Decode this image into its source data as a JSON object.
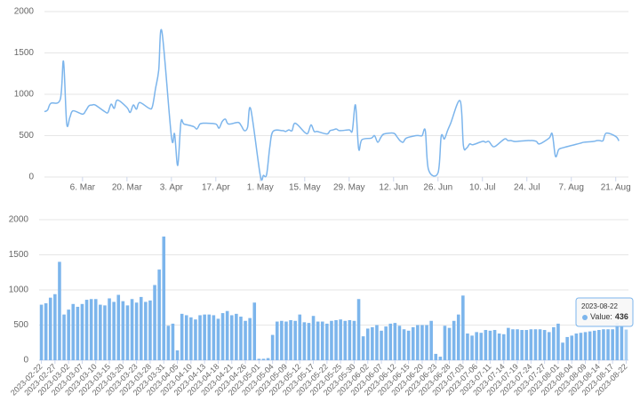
{
  "chart_data": [
    {
      "type": "line",
      "color": "#7cb5ec",
      "grid": true,
      "xlim": [
        "2023-02-22",
        "2023-08-25"
      ],
      "xticks": [
        {
          "value": "2023-03-06",
          "label": "6. Mar"
        },
        {
          "value": "2023-03-20",
          "label": "20. Mar"
        },
        {
          "value": "2023-04-03",
          "label": "3. Apr"
        },
        {
          "value": "2023-04-17",
          "label": "17. Apr"
        },
        {
          "value": "2023-05-01",
          "label": "1. May"
        },
        {
          "value": "2023-05-15",
          "label": "15. May"
        },
        {
          "value": "2023-05-29",
          "label": "29. May"
        },
        {
          "value": "2023-06-12",
          "label": "12. Jun"
        },
        {
          "value": "2023-06-26",
          "label": "26. Jun"
        },
        {
          "value": "2023-07-10",
          "label": "10. Jul"
        },
        {
          "value": "2023-07-24",
          "label": "24. Jul"
        },
        {
          "value": "2023-08-07",
          "label": "7. Aug"
        },
        {
          "value": "2023-08-21",
          "label": "21. Aug"
        }
      ],
      "ylim": [
        0,
        2000
      ],
      "yticks": [
        0,
        500,
        1000,
        1500,
        2000
      ],
      "x": [
        "2023-02-22",
        "2023-02-23",
        "2023-02-24",
        "2023-02-27",
        "2023-02-28",
        "2023-03-01",
        "2023-03-02",
        "2023-03-03",
        "2023-03-06",
        "2023-03-07",
        "2023-03-08",
        "2023-03-09",
        "2023-03-10",
        "2023-03-13",
        "2023-03-14",
        "2023-03-15",
        "2023-03-16",
        "2023-03-17",
        "2023-03-20",
        "2023-03-21",
        "2023-03-22",
        "2023-03-23",
        "2023-03-24",
        "2023-03-27",
        "2023-03-28",
        "2023-03-29",
        "2023-03-30",
        "2023-03-31",
        "2023-04-03",
        "2023-04-04",
        "2023-04-05",
        "2023-04-06",
        "2023-04-07",
        "2023-04-10",
        "2023-04-11",
        "2023-04-12",
        "2023-04-13",
        "2023-04-14",
        "2023-04-17",
        "2023-04-18",
        "2023-04-19",
        "2023-04-20",
        "2023-04-21",
        "2023-04-24",
        "2023-04-25",
        "2023-04-26",
        "2023-04-27",
        "2023-04-28",
        "2023-05-01",
        "2023-05-02",
        "2023-05-03",
        "2023-05-04",
        "2023-05-05",
        "2023-05-08",
        "2023-05-09",
        "2023-05-10",
        "2023-05-11",
        "2023-05-12",
        "2023-05-15",
        "2023-05-16",
        "2023-05-17",
        "2023-05-18",
        "2023-05-19",
        "2023-05-22",
        "2023-05-23",
        "2023-05-24",
        "2023-05-25",
        "2023-05-26",
        "2023-05-29",
        "2023-05-30",
        "2023-05-31",
        "2023-06-01",
        "2023-06-02",
        "2023-06-05",
        "2023-06-06",
        "2023-06-07",
        "2023-06-08",
        "2023-06-09",
        "2023-06-12",
        "2023-06-13",
        "2023-06-14",
        "2023-06-15",
        "2023-06-16",
        "2023-06-19",
        "2023-06-20",
        "2023-06-21",
        "2023-06-22",
        "2023-06-23",
        "2023-06-26",
        "2023-06-27",
        "2023-06-28",
        "2023-06-29",
        "2023-06-30",
        "2023-07-03",
        "2023-07-04",
        "2023-07-05",
        "2023-07-06",
        "2023-07-07",
        "2023-07-10",
        "2023-07-11",
        "2023-07-12",
        "2023-07-13",
        "2023-07-14",
        "2023-07-17",
        "2023-07-18",
        "2023-07-19",
        "2023-07-20",
        "2023-07-21",
        "2023-07-24",
        "2023-07-25",
        "2023-07-26",
        "2023-07-27",
        "2023-07-28",
        "2023-07-31",
        "2023-08-01",
        "2023-08-02",
        "2023-08-03",
        "2023-08-04",
        "2023-08-07",
        "2023-08-08",
        "2023-08-09",
        "2023-08-10",
        "2023-08-11",
        "2023-08-14",
        "2023-08-15",
        "2023-08-16",
        "2023-08-17",
        "2023-08-18",
        "2023-08-21",
        "2023-08-22"
      ],
      "values": [
        790,
        810,
        890,
        940,
        1400,
        650,
        720,
        800,
        760,
        800,
        860,
        870,
        870,
        790,
        780,
        880,
        830,
        930,
        840,
        780,
        870,
        820,
        900,
        830,
        850,
        1070,
        1290,
        1760,
        490,
        520,
        140,
        660,
        640,
        610,
        580,
        640,
        650,
        650,
        640,
        590,
        670,
        700,
        640,
        660,
        620,
        560,
        600,
        820,
        20,
        20,
        30,
        360,
        550,
        560,
        550,
        570,
        560,
        650,
        540,
        530,
        630,
        550,
        550,
        520,
        560,
        570,
        580,
        560,
        570,
        560,
        870,
        340,
        450,
        470,
        500,
        420,
        480,
        520,
        530,
        490,
        440,
        420,
        470,
        500,
        500,
        500,
        560,
        90,
        50,
        490,
        460,
        560,
        650,
        920,
        380,
        350,
        400,
        390,
        430,
        420,
        430,
        380,
        370,
        460,
        440,
        440,
        430,
        430,
        440,
        440,
        440,
        430,
        400,
        470,
        520,
        250,
        330,
        350,
        380,
        390,
        400,
        410,
        420,
        430,
        440,
        440,
        440,
        530,
        490,
        436
      ]
    },
    {
      "type": "bar",
      "color": "#7cb5ec",
      "grid": true,
      "ylim": [
        0,
        2000
      ],
      "yticks": [
        0,
        500,
        1000,
        1500,
        2000
      ],
      "categories": [
        "2023-02-22",
        null,
        null,
        "2023-02-27",
        null,
        null,
        "2023-03-02",
        null,
        null,
        "2023-03-07",
        null,
        null,
        "2023-03-10",
        null,
        null,
        "2023-03-15",
        null,
        null,
        "2023-03-20",
        null,
        null,
        "2023-03-23",
        null,
        null,
        "2023-03-28",
        null,
        null,
        "2023-03-31",
        null,
        null,
        "2023-04-05",
        null,
        null,
        "2023-04-10",
        null,
        null,
        "2023-04-13",
        null,
        null,
        "2023-04-18",
        null,
        null,
        "2023-04-21",
        null,
        null,
        "2023-04-26",
        null,
        null,
        "2023-05-01",
        null,
        null,
        "2023-05-04",
        null,
        null,
        "2023-05-09",
        null,
        null,
        "2023-05-12",
        null,
        null,
        "2023-05-17",
        null,
        null,
        "2023-05-22",
        null,
        null,
        "2023-05-25",
        null,
        null,
        "2023-05-30",
        null,
        null,
        "2023-06-02",
        null,
        null,
        "2023-06-07",
        null,
        null,
        "2023-06-12",
        null,
        null,
        "2023-06-15",
        null,
        null,
        "2023-06-20",
        null,
        null,
        "2023-06-23",
        null,
        null,
        "2023-06-28",
        null,
        null,
        "2023-07-03",
        null,
        null,
        "2023-07-06",
        null,
        null,
        "2023-07-11",
        null,
        null,
        "2023-07-14",
        null,
        null,
        "2023-07-19",
        null,
        null,
        "2023-07-24",
        null,
        null,
        "2023-07-27",
        null,
        null,
        "2023-08-01",
        null,
        null,
        "2023-08-04",
        null,
        null,
        "2023-08-09",
        null,
        null,
        "2023-08-14",
        null,
        null,
        "2023-08-17",
        null,
        null,
        "2023-08-22"
      ],
      "values": [
        790,
        810,
        890,
        940,
        1400,
        650,
        720,
        800,
        760,
        800,
        860,
        870,
        870,
        790,
        780,
        880,
        830,
        930,
        840,
        780,
        870,
        820,
        900,
        830,
        850,
        1070,
        1290,
        1760,
        490,
        520,
        140,
        660,
        640,
        610,
        580,
        640,
        650,
        650,
        640,
        590,
        670,
        700,
        640,
        660,
        620,
        560,
        600,
        820,
        20,
        20,
        30,
        360,
        550,
        560,
        550,
        570,
        560,
        650,
        540,
        530,
        630,
        550,
        550,
        520,
        560,
        570,
        580,
        560,
        570,
        560,
        870,
        340,
        450,
        470,
        500,
        420,
        480,
        520,
        530,
        490,
        440,
        420,
        470,
        500,
        500,
        500,
        560,
        90,
        50,
        490,
        460,
        560,
        650,
        920,
        380,
        350,
        400,
        390,
        430,
        420,
        430,
        380,
        370,
        460,
        440,
        440,
        430,
        430,
        440,
        440,
        440,
        430,
        400,
        470,
        520,
        250,
        330,
        350,
        380,
        390,
        400,
        410,
        420,
        430,
        440,
        440,
        440,
        530,
        490,
        436
      ],
      "tooltip": {
        "date": "2023-08-22",
        "label": "Value:",
        "value": 436
      }
    }
  ]
}
